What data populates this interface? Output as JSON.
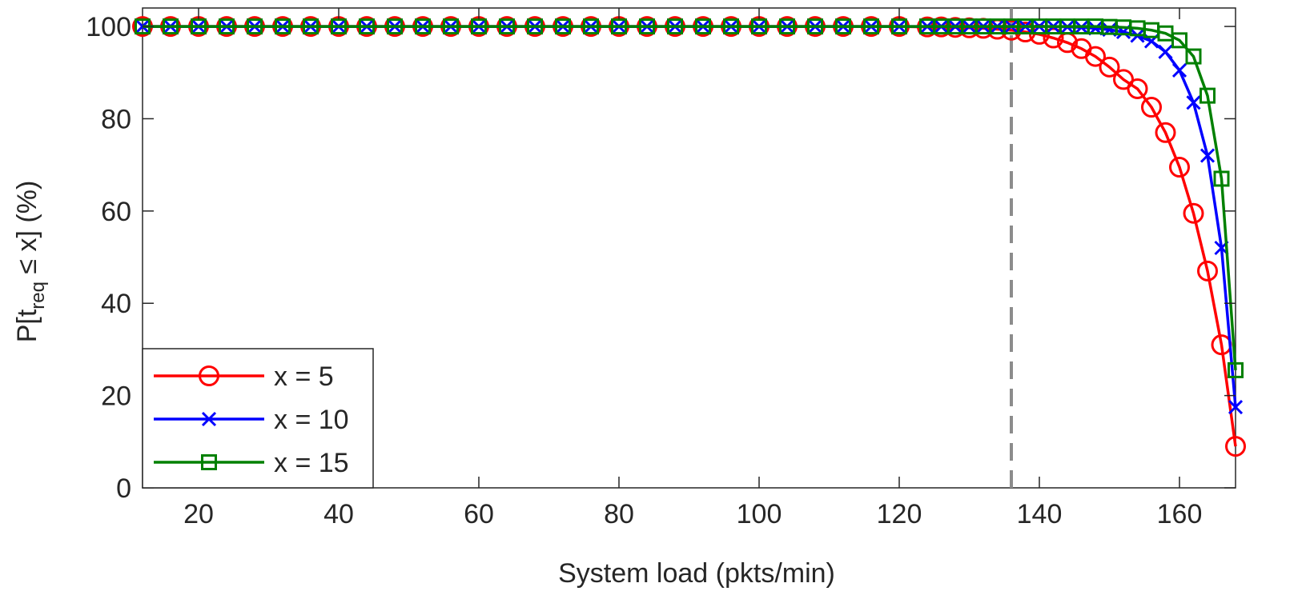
{
  "chart_data": {
    "type": "line",
    "xlabel": "System load (pkts/min)",
    "ylabel": {
      "pre": "P[t",
      "sub": "req",
      "post": " ≤ x] (%)"
    },
    "xlim": [
      12,
      168
    ],
    "ylim": [
      0,
      104
    ],
    "xticks": [
      20,
      40,
      60,
      80,
      100,
      120,
      140,
      160
    ],
    "yticks": [
      0,
      20,
      40,
      60,
      80,
      100
    ],
    "grid": false,
    "legend_position": "bottom-left",
    "reference_line": {
      "x": 136,
      "style": "dashed",
      "color": "#8c8c8c"
    },
    "x": [
      12,
      16,
      20,
      24,
      28,
      32,
      36,
      40,
      44,
      48,
      52,
      56,
      60,
      64,
      68,
      72,
      76,
      80,
      84,
      88,
      92,
      96,
      100,
      104,
      108,
      112,
      116,
      120,
      124,
      126,
      128,
      130,
      132,
      134,
      136,
      138,
      140,
      142,
      144,
      146,
      148,
      150,
      152,
      154,
      156,
      158,
      160,
      162,
      164,
      166,
      168
    ],
    "series": [
      {
        "name": "x = 5",
        "color": "#ff0000",
        "marker": "circle",
        "values": [
          100,
          100,
          100,
          100,
          100,
          100,
          100,
          100,
          100,
          100,
          100,
          100,
          100,
          100,
          100,
          100,
          100,
          100,
          100,
          100,
          100,
          100,
          100,
          100,
          100,
          100,
          100,
          100,
          99.9,
          99.9,
          99.8,
          99.7,
          99.6,
          99.4,
          99.2,
          98.8,
          98.3,
          97.5,
          96.5,
          95.2,
          93.5,
          91.2,
          88.5,
          86.5,
          82.5,
          77,
          69.5,
          59.5,
          47,
          31,
          9
        ]
      },
      {
        "name": "x = 10",
        "color": "#0000ff",
        "marker": "x",
        "values": [
          100,
          100,
          100,
          100,
          100,
          100,
          100,
          100,
          100,
          100,
          100,
          100,
          100,
          100,
          100,
          100,
          100,
          100,
          100,
          100,
          100,
          100,
          100,
          100,
          100,
          100,
          100,
          100,
          100,
          100,
          100,
          100,
          100,
          100,
          100,
          100,
          100,
          100,
          99.9,
          99.8,
          99.6,
          99.3,
          98.8,
          98,
          96.8,
          94.5,
          90.5,
          83.5,
          72,
          52,
          17.5
        ]
      },
      {
        "name": "x = 15",
        "color": "#008000",
        "marker": "square",
        "values": [
          100,
          100,
          100,
          100,
          100,
          100,
          100,
          100,
          100,
          100,
          100,
          100,
          100,
          100,
          100,
          100,
          100,
          100,
          100,
          100,
          100,
          100,
          100,
          100,
          100,
          100,
          100,
          100,
          100,
          100,
          100,
          100,
          100,
          100,
          100,
          100,
          100,
          100,
          100,
          100,
          100,
          99.9,
          99.8,
          99.6,
          99.2,
          98.5,
          97,
          93.5,
          85,
          67,
          25.5
        ]
      }
    ]
  }
}
